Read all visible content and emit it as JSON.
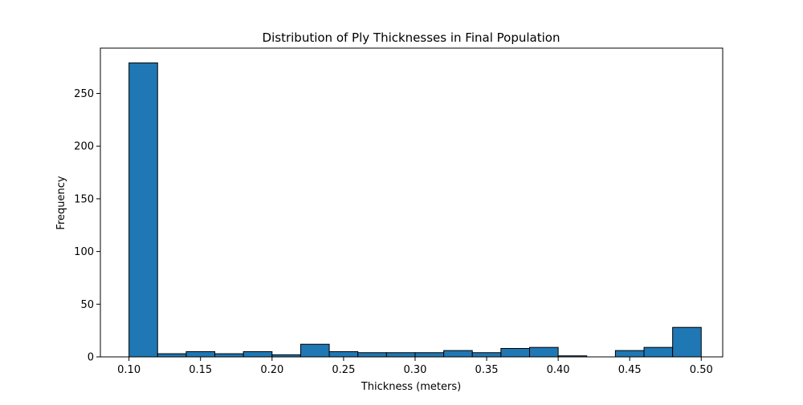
{
  "chart_data": {
    "type": "bar",
    "title": "Distribution of Ply Thicknesses in Final Population",
    "xlabel": "Thickness (meters)",
    "ylabel": "Frequency",
    "bin_edges": [
      0.1,
      0.12,
      0.14,
      0.16,
      0.18,
      0.2,
      0.22,
      0.24,
      0.26,
      0.28,
      0.3,
      0.32,
      0.34,
      0.36,
      0.38,
      0.4,
      0.42,
      0.44,
      0.46,
      0.48,
      0.5
    ],
    "values": [
      279,
      3,
      5,
      3,
      5,
      2,
      12,
      5,
      4,
      4,
      4,
      6,
      4,
      8,
      9,
      1,
      0,
      6,
      9,
      28
    ],
    "xlim": [
      0.08,
      0.515
    ],
    "ylim": [
      0,
      293
    ],
    "xticks": [
      0.1,
      0.15,
      0.2,
      0.25,
      0.3,
      0.35,
      0.4,
      0.45,
      0.5
    ],
    "xtick_labels": [
      "0.10",
      "0.15",
      "0.20",
      "0.25",
      "0.30",
      "0.35",
      "0.40",
      "0.45",
      "0.50"
    ],
    "yticks": [
      0,
      50,
      100,
      150,
      200,
      250
    ],
    "ytick_labels": [
      "0",
      "50",
      "100",
      "150",
      "200",
      "250"
    ],
    "grid": false,
    "colors": {
      "bar_fill": "#1f77b4",
      "bar_edge": "#000000",
      "axes": "#000000"
    }
  }
}
